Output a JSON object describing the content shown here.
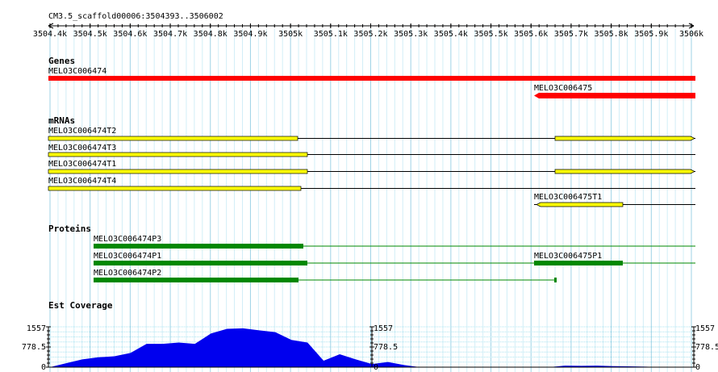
{
  "ruler": {
    "title": "CM3.5_scaffold00006:3504393..3506002",
    "ticks": [
      "3504.4k",
      "3504.5k",
      "3504.6k",
      "3504.7k",
      "3504.8k",
      "3504.9k",
      "3505k",
      "3505.1k",
      "3505.2k",
      "3505.3k",
      "3505.4k",
      "3505.5k",
      "3505.6k",
      "3505.7k",
      "3505.8k",
      "3505.9k",
      "3506k"
    ]
  },
  "genes": {
    "title": "Genes",
    "items": [
      "MELO3C006474",
      "MELO3C006475"
    ]
  },
  "mrnas": {
    "title": "mRNAs",
    "items": [
      "MELO3C006474T2",
      "MELO3C006474T3",
      "MELO3C006474T1",
      "MELO3C006474T4",
      "MELO3C006475T1"
    ]
  },
  "proteins": {
    "title": "Proteins",
    "items": [
      "MELO3C006474P3",
      "MELO3C006474P1",
      "MELO3C006475P1",
      "MELO3C006474P2"
    ]
  },
  "coverage": {
    "title": "Est Coverage",
    "ticks": [
      1557,
      778.5,
      0
    ],
    "positions": [
      3504.4,
      3504.44,
      3504.48,
      3504.52,
      3504.56,
      3504.6,
      3504.64,
      3504.68,
      3504.72,
      3504.76,
      3504.8,
      3504.84,
      3504.88,
      3504.92,
      3504.96,
      3505.0,
      3505.04,
      3505.08,
      3505.12,
      3505.16,
      3505.2,
      3505.24,
      3505.28,
      3505.32,
      3505.36,
      3505.4,
      3505.44,
      3505.48,
      3505.52,
      3505.56,
      3505.6,
      3505.64,
      3505.68,
      3505.72,
      3505.76,
      3505.8,
      3505.84,
      3505.88,
      3505.92,
      3505.96,
      3506.0
    ],
    "values": [
      0,
      150,
      300,
      380,
      420,
      550,
      900,
      900,
      950,
      900,
      1300,
      1480,
      1500,
      1420,
      1350,
      1050,
      950,
      250,
      500,
      300,
      120,
      200,
      80,
      0,
      0,
      0,
      0,
      0,
      0,
      0,
      0,
      0,
      60,
      50,
      60,
      40,
      30,
      20,
      0,
      0,
      0
    ]
  }
}
